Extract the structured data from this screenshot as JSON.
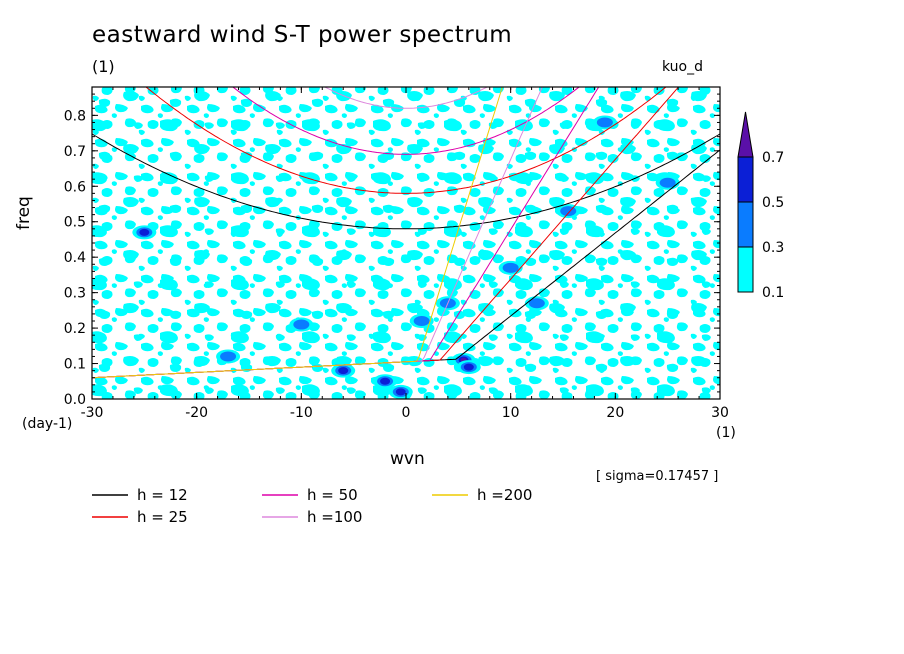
{
  "chart_data": {
    "type": "heatmap",
    "title": "eastward wind S-T power spectrum",
    "subtitle": "(1)",
    "model_label": "kuo_d",
    "xlabel": "wvn",
    "ylabel": "freq",
    "x_unit": "(1)",
    "y_unit": "(day-1)",
    "xlim": [
      -30,
      30
    ],
    "ylim": [
      0,
      0.88
    ],
    "x_ticks": [
      -30,
      -20,
      -10,
      0,
      10,
      20,
      30
    ],
    "x_tick_labels": [
      "-30",
      "-20",
      "-10",
      "0",
      "10",
      "20",
      "30"
    ],
    "y_ticks": [
      0,
      0.1,
      0.2,
      0.3,
      0.4,
      0.5,
      0.6,
      0.7,
      0.8
    ],
    "y_tick_labels": [
      "0.0",
      "0.1",
      "0.2",
      "0.3",
      "0.4",
      "0.5",
      "0.6",
      "0.7",
      "0.8"
    ],
    "colorbar": {
      "levels": [
        0.1,
        0.3,
        0.5,
        0.7
      ],
      "labels": [
        "0.1",
        "0.3",
        "0.5",
        "0.7"
      ],
      "colors": [
        "#00ffff",
        "#0a7cff",
        "#0b1fd6",
        "#5a10a8"
      ]
    },
    "sigma_note": "[ sigma=0.17457 ]",
    "dispersion_curves": [
      {
        "name": "h = 12",
        "h": 12,
        "color": "#000000"
      },
      {
        "name": "h = 25",
        "h": 25,
        "color": "#ee0000"
      },
      {
        "name": "h = 50",
        "h": 50,
        "color": "#dd00aa"
      },
      {
        "name": "h =100",
        "h": 100,
        "color": "#dd88dd"
      },
      {
        "name": "h =200",
        "h": 200,
        "color": "#eecc00"
      }
    ],
    "high_power_spots": [
      {
        "wvn": 5.5,
        "freq": 0.11,
        "level": 0.7
      },
      {
        "wvn": -2,
        "freq": 0.05,
        "level": 0.5
      },
      {
        "wvn": -0.5,
        "freq": 0.02,
        "level": 0.5
      },
      {
        "wvn": -6,
        "freq": 0.08,
        "level": 0.5
      },
      {
        "wvn": 6,
        "freq": 0.09,
        "level": 0.5
      },
      {
        "wvn": -25,
        "freq": 0.47,
        "level": 0.5
      },
      {
        "wvn": 15.5,
        "freq": 0.53,
        "level": 0.3
      },
      {
        "wvn": 19,
        "freq": 0.78,
        "level": 0.3
      },
      {
        "wvn": 10,
        "freq": 0.37,
        "level": 0.3
      },
      {
        "wvn": 12.5,
        "freq": 0.27,
        "level": 0.3
      },
      {
        "wvn": -10,
        "freq": 0.21,
        "level": 0.3
      },
      {
        "wvn": 4,
        "freq": 0.27,
        "level": 0.3
      },
      {
        "wvn": 25,
        "freq": 0.61,
        "level": 0.3
      },
      {
        "wvn": 1.5,
        "freq": 0.22,
        "level": 0.3
      },
      {
        "wvn": -17,
        "freq": 0.12,
        "level": 0.3
      }
    ]
  }
}
